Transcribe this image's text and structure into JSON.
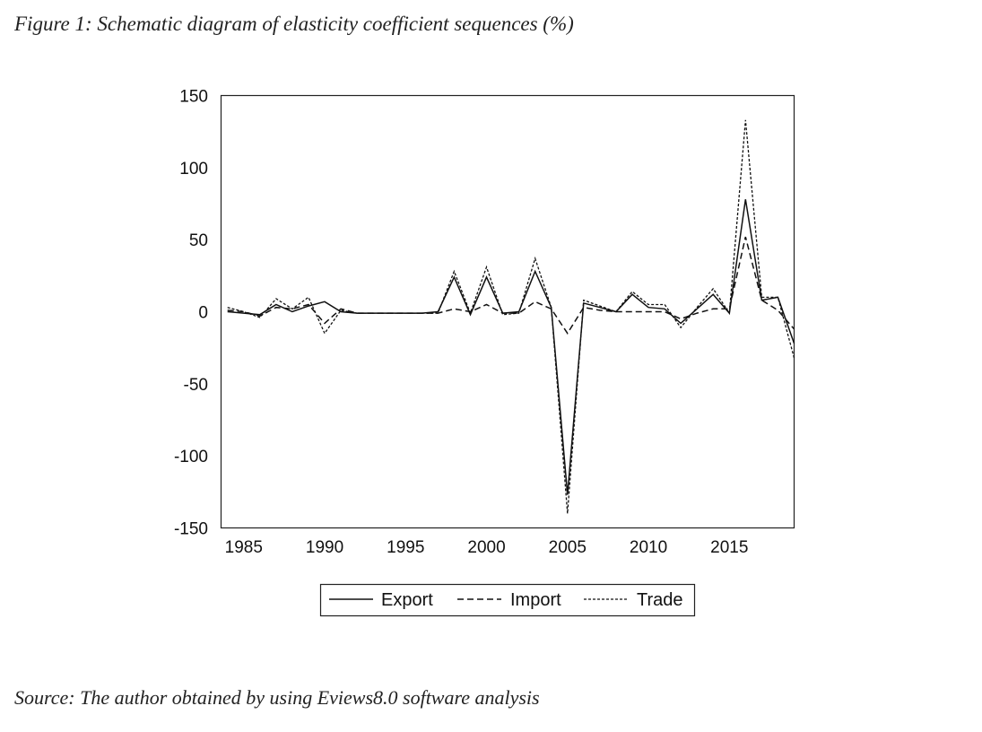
{
  "figure": {
    "caption": "Figure 1: Schematic diagram of elasticity coefficient sequences (%)",
    "source": "Source: The author obtained by using Eviews8.0 software analysis"
  },
  "chart_data": {
    "type": "line",
    "x": [
      1984,
      1985,
      1986,
      1987,
      1988,
      1989,
      1990,
      1991,
      1992,
      1993,
      1994,
      1995,
      1996,
      1997,
      1998,
      1999,
      2000,
      2001,
      2002,
      2003,
      2004,
      2005,
      2006,
      2007,
      2008,
      2009,
      2010,
      2011,
      2012,
      2013,
      2014,
      2015,
      2016,
      2017,
      2018,
      2019
    ],
    "xticks": [
      1985,
      1990,
      1995,
      2000,
      2005,
      2010,
      2015
    ],
    "yticks": [
      150,
      100,
      50,
      0,
      -50,
      -100,
      -150
    ],
    "ylim": [
      -150,
      150
    ],
    "xlim": [
      1983.6,
      2019
    ],
    "grid": false,
    "legend_position": "bottom",
    "series": [
      {
        "name": "Export",
        "style": "solid",
        "values": [
          0,
          -1,
          -2,
          5,
          0,
          4,
          7,
          0,
          -1,
          -1,
          -1,
          -1,
          -1,
          0,
          24,
          -2,
          24,
          -1,
          0,
          28,
          3,
          -127,
          6,
          3,
          0,
          12,
          3,
          2,
          -8,
          2,
          12,
          -1,
          78,
          8,
          10,
          -22
        ]
      },
      {
        "name": "Import",
        "style": "dashed",
        "values": [
          1,
          0,
          -3,
          3,
          2,
          5,
          -8,
          2,
          -1,
          -1,
          -1,
          -1,
          -1,
          -1,
          2,
          0,
          5,
          -1,
          -1,
          7,
          2,
          -15,
          3,
          1,
          0,
          0,
          0,
          0,
          -5,
          -1,
          2,
          2,
          52,
          8,
          1,
          -12
        ]
      },
      {
        "name": "Trade",
        "style": "dotted",
        "values": [
          3,
          0,
          -4,
          9,
          2,
          10,
          -15,
          1,
          -1,
          -1,
          -1,
          -1,
          -1,
          -1,
          28,
          -1,
          31,
          -2,
          -1,
          37,
          3,
          -140,
          8,
          4,
          0,
          14,
          5,
          5,
          -11,
          3,
          16,
          -1,
          133,
          10,
          10,
          -32
        ]
      }
    ]
  }
}
